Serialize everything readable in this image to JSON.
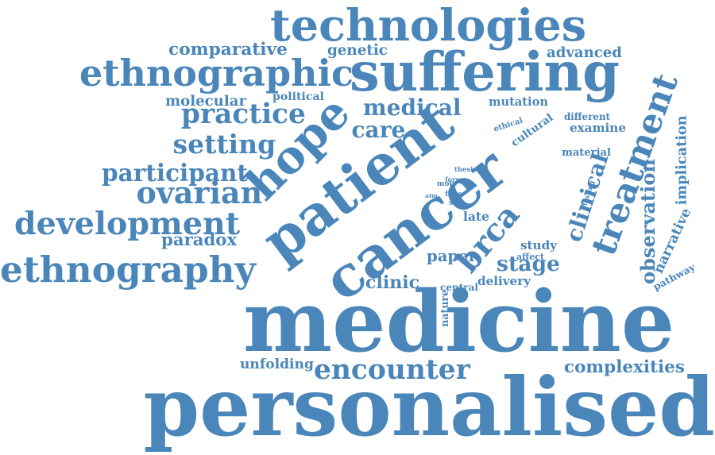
{
  "cloud": {
    "color": "#4a86b9",
    "background": "#ffffff",
    "words": [
      "medicine",
      "personalised",
      "cancer",
      "patient",
      "treatment",
      "suffering",
      "technologies",
      "ethnographic",
      "ethnography",
      "hope",
      "brca",
      "development",
      "ovarian",
      "setting",
      "practice",
      "participant",
      "encounter",
      "observation",
      "clinical",
      "care",
      "medical",
      "complexities",
      "narrative",
      "stage",
      "clinic",
      "paradox",
      "unfolding",
      "comparative",
      "genetic",
      "advanced",
      "molecular",
      "political",
      "mutation",
      "different",
      "examine",
      "ethical",
      "cultural",
      "material",
      "implication",
      "pathway",
      "paper",
      "delivery",
      "central",
      "nature",
      "study",
      "affect",
      "late",
      "thesis",
      "testing",
      "form",
      "more",
      "aim",
      "face",
      "site"
    ]
  }
}
